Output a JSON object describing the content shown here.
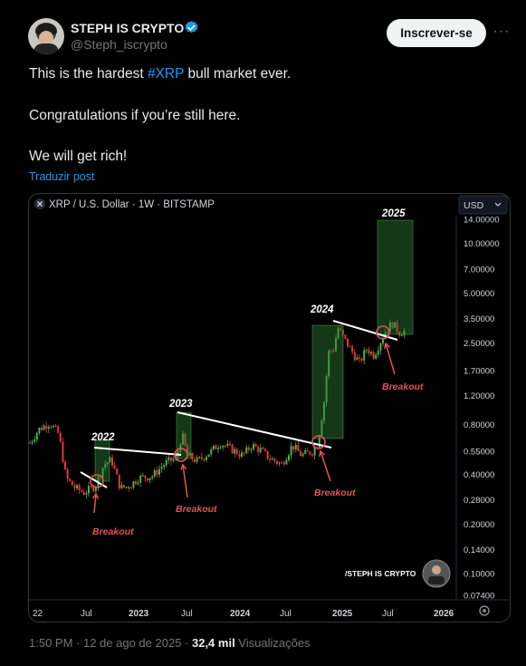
{
  "author": {
    "name": "STEPH IS CRYPTO",
    "handle": "@Steph_iscrypto",
    "verified": true,
    "verified_color": "#1d9bf0"
  },
  "actions": {
    "follow_label": "Inscrever-se",
    "more_label": "···"
  },
  "tweet": {
    "line1_before": "This is the hardest ",
    "line1_hashtag": "#XRP",
    "line1_after": " bull market ever.",
    "line2": "Congratulations if you’re still here.",
    "line3": "We will get rich!",
    "translate_label": "Traduzir post"
  },
  "meta": {
    "time": "1:50 PM",
    "sep1": " · ",
    "date": "12 de ago de 2025",
    "sep2": " · ",
    "views_count": "32,4 mil",
    "views_label": " Visualizações"
  },
  "chart_data": {
    "type": "line",
    "title": "XRP / U.S. Dollar · 1W · BITSTAMP",
    "currency": "USD",
    "yscale": "log",
    "y_ticks": [
      "14.00000",
      "10.00000",
      "7.00000",
      "5.00000",
      "3.50000",
      "2.50000",
      "1.70000",
      "1.20000",
      "0.80000",
      "0.55000",
      "0.40000",
      "0.28000",
      "0.20000",
      "0.14000",
      "0.10000",
      "0.07400"
    ],
    "x_ticks": [
      "22",
      "Jul",
      "2023",
      "Jul",
      "2024",
      "Jul",
      "2025",
      "Jul",
      "2026"
    ],
    "year_labels": [
      "2022",
      "2023",
      "2024",
      "2025"
    ],
    "annotations": [
      "Breakout",
      "Breakout",
      "Breakout",
      "Breakout"
    ],
    "watermark": "/STEPH IS CRYPTO",
    "colors": {
      "up": "#4caf50",
      "down": "#e53935",
      "box": "#2e7d32",
      "breakout": "#e05555"
    }
  }
}
